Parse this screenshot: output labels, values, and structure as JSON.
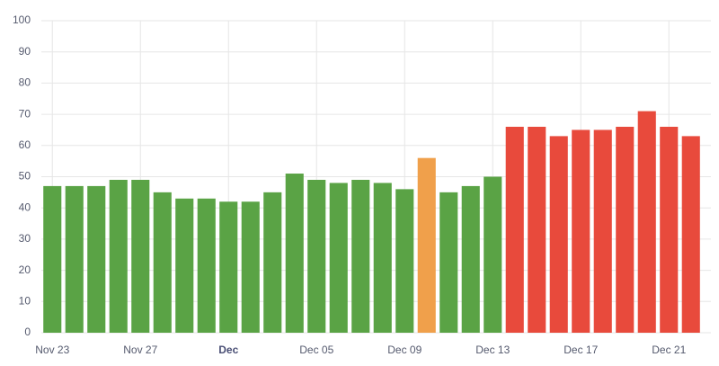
{
  "chart_data": {
    "type": "bar",
    "categories": [
      "Nov 23",
      null,
      null,
      null,
      "Nov 27",
      null,
      null,
      null,
      "Dec",
      null,
      null,
      null,
      "Dec 05",
      null,
      null,
      null,
      "Dec 09",
      null,
      null,
      null,
      "Dec 13",
      null,
      null,
      null,
      "Dec 17",
      null,
      null,
      null,
      "Dec 21",
      null
    ],
    "values": [
      47,
      47,
      47,
      49,
      49,
      45,
      43,
      43,
      42,
      42,
      45,
      51,
      49,
      48,
      49,
      48,
      46,
      56,
      45,
      47,
      50,
      66,
      66,
      63,
      65,
      65,
      66,
      71,
      66,
      63
    ],
    "colors": [
      "#5aa345",
      "#5aa345",
      "#5aa345",
      "#5aa345",
      "#5aa345",
      "#5aa345",
      "#5aa345",
      "#5aa345",
      "#5aa345",
      "#5aa345",
      "#5aa345",
      "#5aa345",
      "#5aa345",
      "#5aa345",
      "#5aa345",
      "#5aa345",
      "#5aa345",
      "#f0a04b",
      "#5aa345",
      "#5aa345",
      "#5aa345",
      "#e84a3c",
      "#e84a3c",
      "#e84a3c",
      "#e84a3c",
      "#e84a3c",
      "#e84a3c",
      "#e84a3c",
      "#e84a3c",
      "#e84a3c"
    ],
    "bold_category": 8,
    "ylim": [
      0,
      100
    ],
    "yticks": [
      0,
      10,
      20,
      30,
      40,
      50,
      60,
      70,
      80,
      90,
      100
    ],
    "grid": true
  }
}
